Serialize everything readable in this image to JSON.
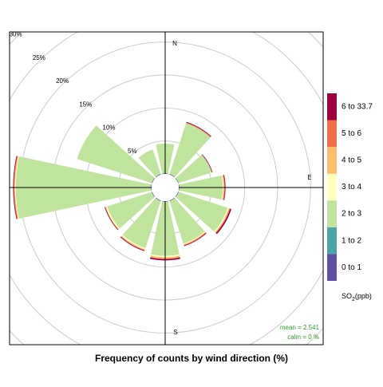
{
  "chart_data": {
    "type": "windrose",
    "title": "Frequency of counts by wind direction (%)",
    "axis_labels": [
      "N",
      "E",
      "S"
    ],
    "rlim": [
      0,
      30
    ],
    "rticks": [
      {
        "value": 5,
        "label": "5%"
      },
      {
        "value": 10,
        "label": "10%"
      },
      {
        "value": 15,
        "label": "15%"
      },
      {
        "value": 20,
        "label": "20%"
      },
      {
        "value": 25,
        "label": "25%"
      },
      {
        "value": 30,
        "label": "30%"
      }
    ],
    "legend_title": {
      "base": "SO",
      "sub": "2",
      "unit": "(ppb)"
    },
    "stats": [
      "mean =  2.541",
      "calm =  0 %"
    ],
    "series": [
      {
        "name": "0 to 1",
        "color": "#5e4fa2",
        "values": [
          0.1,
          0.1,
          0.1,
          0.1,
          0.1,
          0.1,
          0.1,
          0.1,
          0.1,
          0.1,
          0.1,
          0.1
        ]
      },
      {
        "name": "1 to 2",
        "color": "#4aa4a8",
        "values": [
          0,
          0,
          0,
          0,
          0,
          0,
          0,
          0,
          0,
          0,
          0,
          0
        ]
      },
      {
        "name": "2 to 3",
        "color": "#c0e39e",
        "values": [
          4.5,
          8.1,
          5.3,
          6.6,
          7.8,
          6.8,
          8.2,
          7.5,
          7.1,
          20.5,
          11.9,
          3.9
        ]
      },
      {
        "name": "3 to 4",
        "color": "#ffffbf",
        "values": [
          0,
          0,
          0,
          0.1,
          0.2,
          0.1,
          0.2,
          0.2,
          0.2,
          0.1,
          0,
          0
        ]
      },
      {
        "name": "4 to 5",
        "color": "#fdbf6f",
        "values": [
          0,
          0,
          0,
          0.1,
          0.1,
          0.1,
          0.2,
          0.1,
          0.1,
          0.1,
          0,
          0
        ]
      },
      {
        "name": "5 to 6",
        "color": "#f26d4a",
        "values": [
          0,
          0.1,
          0,
          0.1,
          0.1,
          0.1,
          0.1,
          0.1,
          0,
          0.1,
          0,
          0
        ]
      },
      {
        "name": "6 to 33.7",
        "color": "#9e0142",
        "values": [
          0,
          0.1,
          0.1,
          0.1,
          0.2,
          0.1,
          0.2,
          0.1,
          0.1,
          0.1,
          0,
          0
        ]
      }
    ]
  }
}
